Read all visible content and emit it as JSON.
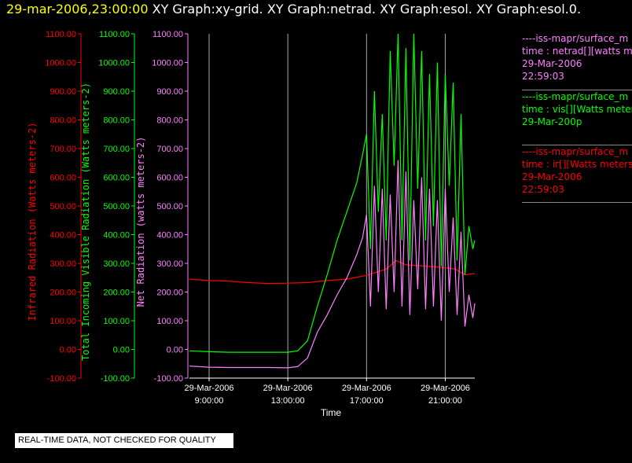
{
  "header": {
    "timestamp": "29-mar-2006,23:00:00",
    "titles": "XY Graph:xy-grid.  XY Graph:netrad.  XY Graph:esol.  XY Graph:esol.0."
  },
  "notice": "REAL-TIME DATA, NOT CHECKED FOR QUALITY",
  "legend": [
    {
      "color": "#ff80ff",
      "lines": [
        "----iss-mapr/surface_m",
        "time : netrad[][watts m",
        "29-Mar-2006",
        "22:59:03"
      ]
    },
    {
      "color": "#00ff00",
      "lines": [
        "----iss-mapr/surface_m",
        "time : vis[][Watts meter",
        "29-Mar-200p"
      ]
    },
    {
      "color": "#ff0000",
      "lines": [
        "----iss-mapr/surface_m",
        "time : ir[][Watts meters",
        "29-Mar-2006",
        "22:59:03"
      ]
    }
  ],
  "chart_data": {
    "type": "line",
    "xlabel": "Time",
    "x_ticks": [
      {
        "date": "29-Mar-2006",
        "time": "9:00:00",
        "hour": 9
      },
      {
        "date": "29-Mar-2006",
        "time": "13:00:00",
        "hour": 13
      },
      {
        "date": "29-Mar-2006",
        "time": "17:00:00",
        "hour": 17
      },
      {
        "date": "29-Mar-2006",
        "time": "21:00:00",
        "hour": 21
      }
    ],
    "xlim_hours": [
      8.0,
      22.5
    ],
    "ylim": [
      -100,
      1100
    ],
    "y_ticks": [
      -100,
      0,
      100,
      200,
      300,
      400,
      500,
      600,
      700,
      800,
      900,
      1000,
      1100
    ],
    "axes": [
      {
        "label": "Infrared Radiation (Watts meters-2)",
        "color": "#ff0000",
        "ticks": [
          "-100.00",
          "0.00",
          "100.00",
          "200.00",
          "300.00",
          "400.00",
          "500.00",
          "600.00",
          "700.00",
          "800.00",
          "900.00",
          "1000.00",
          "1100.00"
        ]
      },
      {
        "label": "Total Incoming Visible Radiation (Watts meters-2)",
        "color": "#00ff00",
        "ticks": [
          "-100.00",
          "0.00",
          "100.00",
          "200.00",
          "300.00",
          "400.00",
          "500.00",
          "600.00",
          "700.00",
          "800.00",
          "900.00",
          "1000.00",
          "1100.00"
        ]
      },
      {
        "label": "Net Radiation (watts meters-2)",
        "color": "#ff80ff",
        "ticks": [
          "-100.00",
          "0.00",
          "100.00",
          "200.00",
          "300.00",
          "400.00",
          "500.00",
          "600.00",
          "700.00",
          "800.00",
          "900.00",
          "1000.00",
          "1100.00"
        ]
      }
    ],
    "grid": "vertical",
    "series": [
      {
        "name": "ir",
        "color": "#ff0000",
        "x": [
          8.0,
          9.0,
          10.0,
          11.0,
          12.0,
          13.0,
          14.0,
          15.0,
          16.0,
          17.0,
          18.0,
          18.5,
          19.0,
          20.0,
          21.0,
          21.5,
          22.0,
          22.5
        ],
        "y": [
          245,
          240,
          238,
          233,
          230,
          231,
          233,
          240,
          245,
          258,
          280,
          310,
          295,
          290,
          285,
          280,
          260,
          265
        ]
      },
      {
        "name": "vis",
        "color": "#00ff00",
        "x": [
          8.0,
          9.0,
          10.0,
          11.0,
          12.0,
          13.0,
          13.5,
          14.0,
          14.5,
          15.0,
          15.5,
          16.0,
          16.5,
          16.8,
          17.0,
          17.2,
          17.4,
          17.6,
          17.8,
          18.0,
          18.2,
          18.4,
          18.6,
          18.8,
          19.0,
          19.2,
          19.4,
          19.6,
          19.8,
          20.0,
          20.2,
          20.4,
          20.6,
          20.8,
          21.0,
          21.2,
          21.4,
          21.6,
          21.8,
          22.0,
          22.2,
          22.4,
          22.5
        ],
        "y": [
          -5,
          -8,
          -10,
          -10,
          -10,
          -10,
          -5,
          30,
          150,
          260,
          380,
          480,
          580,
          680,
          750,
          350,
          900,
          480,
          820,
          380,
          1040,
          640,
          1100,
          380,
          1050,
          310,
          1100,
          560,
          1040,
          380,
          960,
          430,
          1000,
          290,
          960,
          570,
          930,
          310,
          820,
          260,
          430,
          350,
          380
        ]
      },
      {
        "name": "netrad",
        "color": "#ff80ff",
        "x": [
          8.0,
          9.0,
          10.0,
          11.0,
          12.0,
          13.0,
          13.5,
          14.0,
          14.5,
          15.0,
          15.5,
          16.0,
          16.5,
          16.8,
          17.0,
          17.2,
          17.4,
          17.6,
          17.8,
          18.0,
          18.2,
          18.4,
          18.6,
          18.8,
          19.0,
          19.2,
          19.4,
          19.6,
          19.8,
          20.0,
          20.2,
          20.4,
          20.6,
          20.8,
          21.0,
          21.2,
          21.4,
          21.6,
          21.8,
          22.0,
          22.2,
          22.4,
          22.5
        ],
        "y": [
          -58,
          -62,
          -63,
          -63,
          -63,
          -64,
          -60,
          -30,
          60,
          120,
          190,
          250,
          330,
          390,
          470,
          150,
          570,
          200,
          560,
          140,
          540,
          200,
          660,
          150,
          620,
          120,
          520,
          210,
          600,
          140,
          560,
          150,
          520,
          100,
          560,
          200,
          460,
          120,
          410,
          80,
          190,
          110,
          160
        ]
      }
    ]
  }
}
